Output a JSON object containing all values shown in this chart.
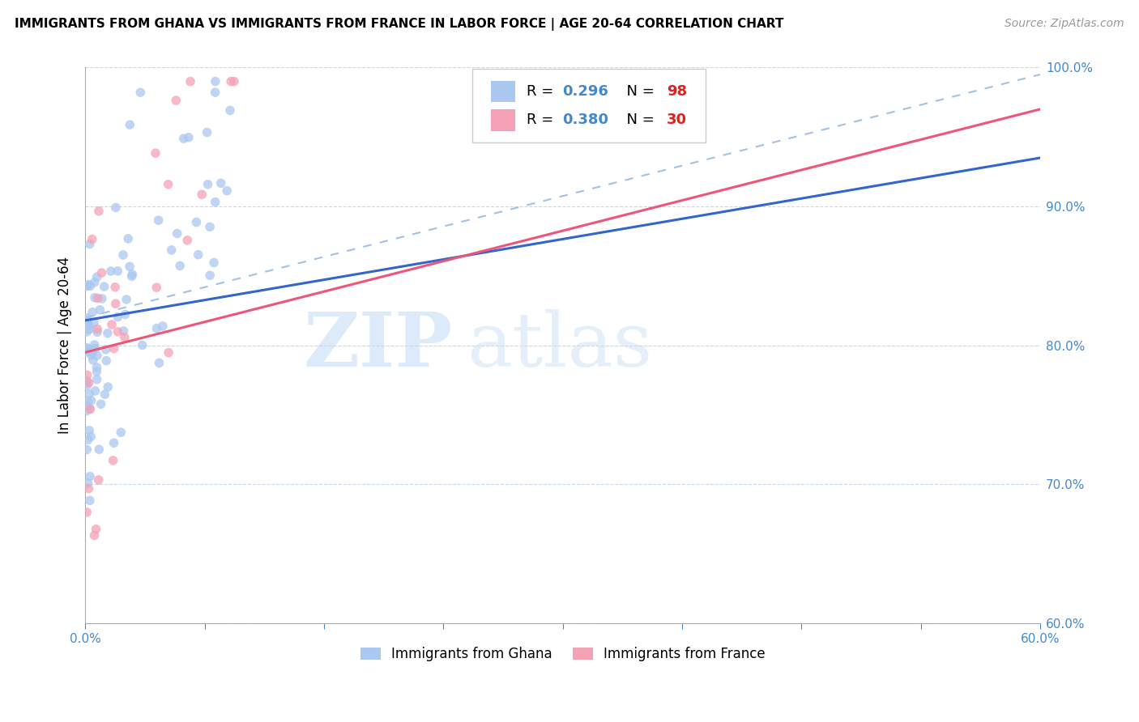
{
  "title": "IMMIGRANTS FROM GHANA VS IMMIGRANTS FROM FRANCE IN LABOR FORCE | AGE 20-64 CORRELATION CHART",
  "source": "Source: ZipAtlas.com",
  "ylabel_label": "In Labor Force | Age 20-64",
  "legend_label_ghana": "Immigrants from Ghana",
  "legend_label_france": "Immigrants from France",
  "ghana_color": "#aac8f0",
  "france_color": "#f5a0b5",
  "ghana_line_color": "#3366cc",
  "france_line_color": "#ee5577",
  "diagonal_color": "#99bbdd",
  "R_ghana": 0.296,
  "N_ghana": 98,
  "R_france": 0.38,
  "N_france": 30,
  "xlim": [
    0.0,
    0.6
  ],
  "ylim": [
    0.6,
    1.0
  ],
  "x_ticks": [
    0.0,
    0.075,
    0.15,
    0.225,
    0.3,
    0.375,
    0.45,
    0.525,
    0.6
  ],
  "y_ticks": [
    0.6,
    0.7,
    0.8,
    0.9,
    1.0
  ],
  "title_fontsize": 11,
  "source_fontsize": 10,
  "tick_fontsize": 11,
  "ylabel_fontsize": 12
}
